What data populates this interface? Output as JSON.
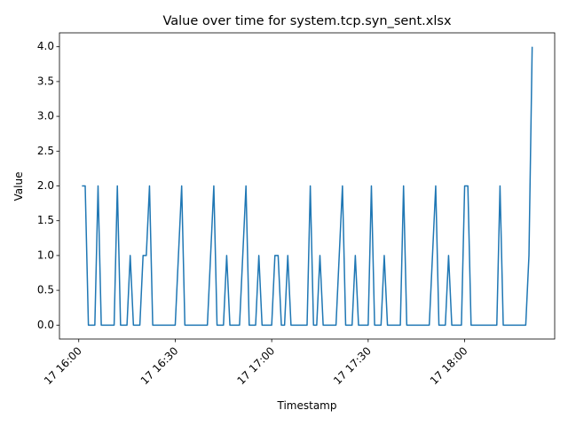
{
  "chart_data": {
    "type": "line",
    "title": "Value over time for system.tcp.syn_sent.xlsx",
    "x_label": "Timestamp",
    "y_label": "Value",
    "x": [
      "17 16:01",
      "17 16:02",
      "17 16:03",
      "17 16:05",
      "17 16:06",
      "17 16:07",
      "17 16:11",
      "17 16:12",
      "17 16:13",
      "17 16:15",
      "17 16:16",
      "17 16:17",
      "17 16:19",
      "17 16:20",
      "17 16:21",
      "17 16:22",
      "17 16:23",
      "17 16:30",
      "17 16:31",
      "17 16:32",
      "17 16:33",
      "17 16:40",
      "17 16:41",
      "17 16:42",
      "17 16:43",
      "17 16:45",
      "17 16:46",
      "17 16:47",
      "17 16:50",
      "17 16:51",
      "17 16:52",
      "17 16:53",
      "17 16:55",
      "17 16:56",
      "17 16:57",
      "17 17:00",
      "17 17:01",
      "17 17:02",
      "17 17:03",
      "17 17:04",
      "17 17:05",
      "17 17:06",
      "17 17:11",
      "17 17:12",
      "17 17:13",
      "17 17:14",
      "17 17:15",
      "17 17:16",
      "17 17:20",
      "17 17:21",
      "17 17:22",
      "17 17:23",
      "17 17:25",
      "17 17:26",
      "17 17:27",
      "17 17:30",
      "17 17:31",
      "17 17:32",
      "17 17:34",
      "17 17:35",
      "17 17:36",
      "17 17:40",
      "17 17:41",
      "17 17:42",
      "17 17:49",
      "17 17:50",
      "17 17:51",
      "17 17:52",
      "17 17:54",
      "17 17:55",
      "17 17:56",
      "17 17:59",
      "17 18:00",
      "17 18:01",
      "17 18:02",
      "17 18:10",
      "17 18:11",
      "17 18:12",
      "17 18:19",
      "17 18:20",
      "17 18:21"
    ],
    "series": [
      {
        "name": "Value",
        "color": "#1f77b4",
        "values": [
          2,
          2,
          0,
          0,
          2,
          0,
          0,
          2,
          0,
          0,
          1,
          0,
          0,
          1,
          1,
          2,
          0,
          0,
          1,
          2,
          0,
          0,
          1,
          2,
          0,
          0,
          1,
          0,
          0,
          1,
          2,
          0,
          0,
          1,
          0,
          0,
          1,
          1,
          0,
          0,
          1,
          0,
          0,
          2,
          0,
          0,
          1,
          0,
          0,
          1,
          2,
          0,
          0,
          1,
          0,
          0,
          2,
          0,
          0,
          1,
          0,
          0,
          2,
          0,
          0,
          1,
          2,
          0,
          0,
          1,
          0,
          0,
          2,
          2,
          0,
          0,
          2,
          0,
          0,
          1,
          4
        ]
      }
    ],
    "xlim": [
      "17 15:54",
      "17 18:28"
    ],
    "xticks": [
      "17 16:00",
      "17 16:30",
      "17 17:00",
      "17 17:30",
      "17 18:00"
    ],
    "ylim": [
      -0.2,
      4.2
    ],
    "yticks": [
      {
        "value": 0,
        "label": "0.0"
      },
      0.5,
      {
        "value": 1,
        "label": "1.0"
      },
      1.5,
      {
        "value": 2,
        "label": "2.0"
      },
      2.5,
      {
        "value": 3,
        "label": "3.0"
      },
      3.5,
      {
        "value": 4,
        "label": "4.0"
      }
    ],
    "grid": false
  }
}
